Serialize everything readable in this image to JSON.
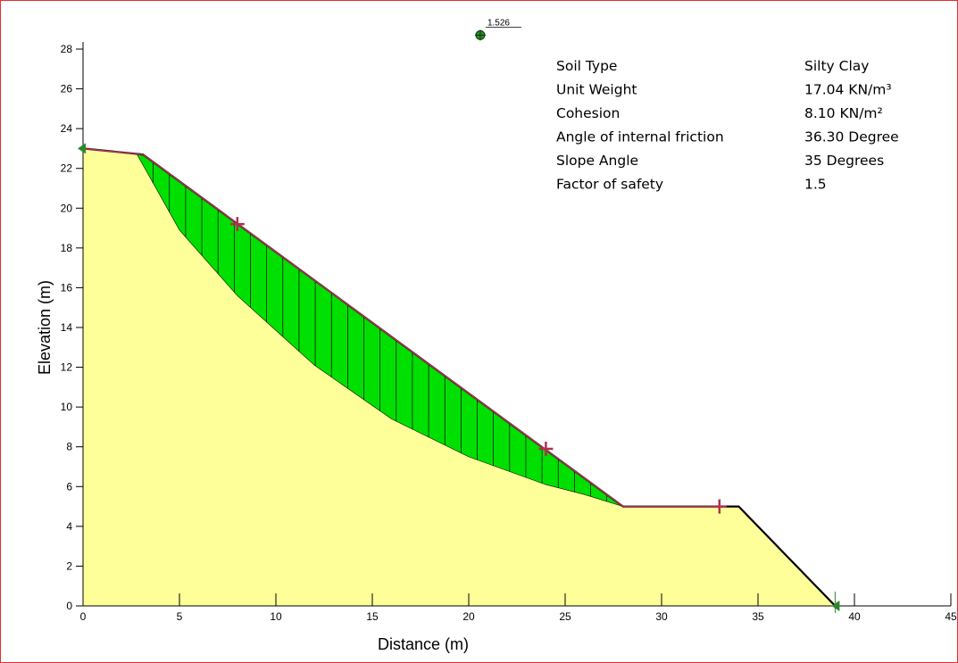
{
  "chart_data": {
    "type": "diagram",
    "xlabel": "Distance (m)",
    "ylabel": "Elevation (m)",
    "xlim": [
      0,
      45
    ],
    "ylim": [
      0,
      28
    ],
    "x_ticks": [
      0,
      5,
      10,
      15,
      20,
      25,
      30,
      35,
      40,
      45
    ],
    "y_ticks": [
      0,
      2,
      4,
      6,
      8,
      10,
      12,
      14,
      16,
      18,
      20,
      22,
      24,
      26,
      28
    ],
    "ground_profile": [
      [
        0,
        23
      ],
      [
        3.1,
        22.7
      ],
      [
        28,
        5
      ],
      [
        34,
        5
      ],
      [
        39,
        0
      ]
    ],
    "slip_surface": [
      [
        2.8,
        22.7
      ],
      [
        5,
        18.9
      ],
      [
        8,
        15.6
      ],
      [
        12,
        12.1
      ],
      [
        16,
        9.4
      ],
      [
        20,
        7.5
      ],
      [
        24,
        6.1
      ],
      [
        26,
        5.6
      ],
      [
        28,
        5
      ]
    ],
    "slip_entry_exit": [
      2.8,
      28
    ],
    "slice_count": 30,
    "markers": [
      [
        8,
        19.2
      ],
      [
        24,
        7.9
      ],
      [
        33,
        5
      ]
    ],
    "supports": [
      [
        0,
        23
      ],
      [
        39,
        0
      ]
    ],
    "center": {
      "x": 20.6,
      "y": 28.7,
      "factor_label": "1.526"
    },
    "colors": {
      "soil": "#ffff99",
      "sliding_mass": "#00e000",
      "profile_line": "#000000",
      "surface_line": "#aa3355",
      "marker": "#b03050",
      "support": "#2a8a2a",
      "frame": "#e03030"
    }
  },
  "properties": {
    "labels": [
      "Soil Type",
      "Unit Weight",
      "Cohesion",
      "Angle of internal friction",
      "Slope Angle",
      "Factor of safety"
    ],
    "values": [
      "Silty Clay",
      "17.04 KN/m³",
      "8.10 KN/m²",
      "36.30 Degree",
      "35 Degrees",
      "1.5"
    ]
  }
}
